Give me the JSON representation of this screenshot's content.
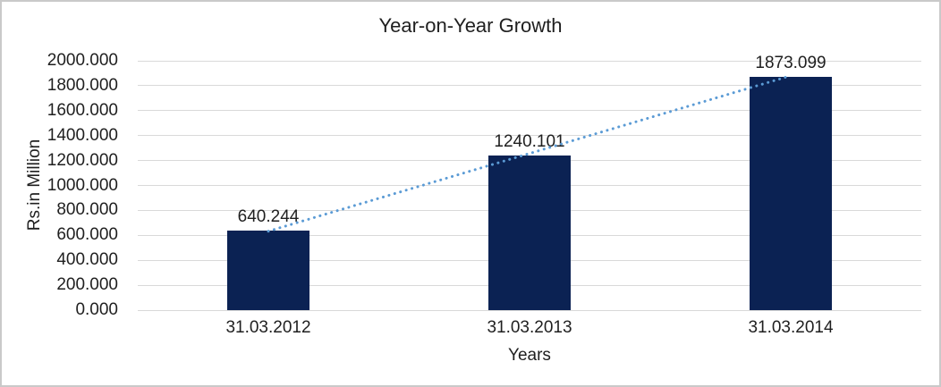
{
  "chart_data": {
    "type": "bar",
    "title": "Year-on-Year Growth",
    "xlabel": "Years",
    "ylabel": "Rs.in Million",
    "categories": [
      "31.03.2012",
      "31.03.2013",
      "31.03.2014"
    ],
    "values": [
      640.244,
      1240.101,
      1873.099
    ],
    "data_labels": [
      "640.244",
      "1240.101",
      "1873.099"
    ],
    "ylim": [
      0,
      2000
    ],
    "ytick_step": 200,
    "ytick_decimals": 3,
    "grid": "horizontal",
    "legend": "none",
    "trendline": {
      "type": "linear",
      "style": "dotted",
      "from_category": "31.03.2012",
      "to_category": "31.03.2014"
    },
    "colors": {
      "bar": "#0b2253",
      "trendline": "#5b9bd5",
      "gridline": "#d9d9d9",
      "text": "#1f1f1f",
      "frame_border": "#c9c9c9"
    }
  }
}
